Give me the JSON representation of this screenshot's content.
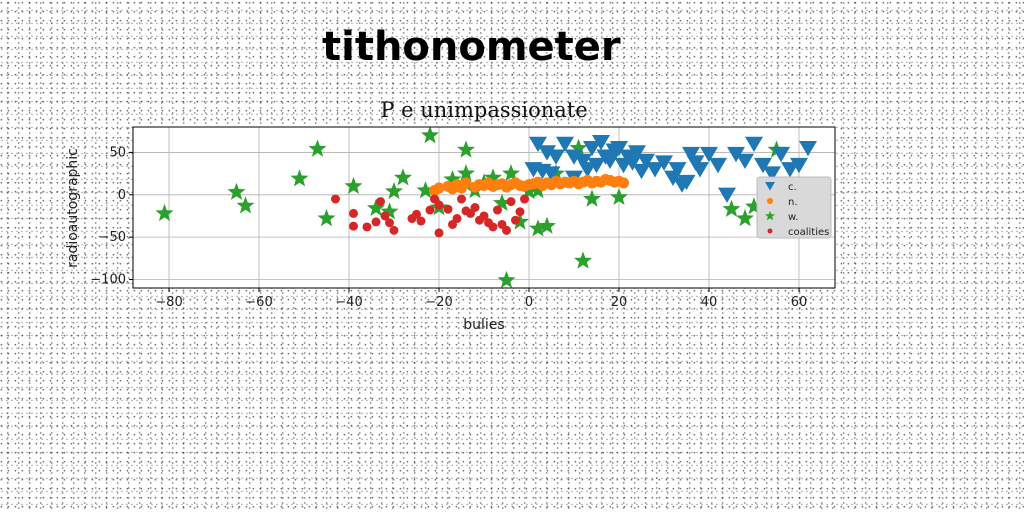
{
  "header": {
    "title": "tithonometer"
  },
  "chart_data": {
    "type": "scatter",
    "title": "P e unimpassionate",
    "xlabel": "bulies",
    "ylabel": "radioautographic",
    "xlim": [
      -88,
      68
    ],
    "ylim": [
      -110,
      80
    ],
    "xticks": [
      -80,
      -60,
      -40,
      -20,
      0,
      20,
      40,
      60
    ],
    "yticks": [
      -100,
      -50,
      0,
      50
    ],
    "grid": true,
    "legend_position": "right",
    "series": [
      {
        "name": "c.",
        "marker": "triangle-down",
        "color": "#1f77b4",
        "points": [
          [
            2,
            60
          ],
          [
            4,
            50
          ],
          [
            6,
            45
          ],
          [
            8,
            60
          ],
          [
            10,
            45
          ],
          [
            12,
            40
          ],
          [
            14,
            55
          ],
          [
            16,
            62
          ],
          [
            17,
            45
          ],
          [
            18,
            40
          ],
          [
            19,
            52
          ],
          [
            20,
            55
          ],
          [
            21,
            35
          ],
          [
            22,
            45
          ],
          [
            23,
            38
          ],
          [
            24,
            50
          ],
          [
            26,
            40
          ],
          [
            28,
            30
          ],
          [
            30,
            38
          ],
          [
            32,
            20
          ],
          [
            34,
            12
          ],
          [
            35,
            15
          ],
          [
            36,
            48
          ],
          [
            37,
            38
          ],
          [
            38,
            30
          ],
          [
            40,
            48
          ],
          [
            42,
            35
          ],
          [
            44,
            0
          ],
          [
            46,
            48
          ],
          [
            48,
            40
          ],
          [
            50,
            60
          ],
          [
            52,
            35
          ],
          [
            54,
            25
          ],
          [
            56,
            48
          ],
          [
            58,
            30
          ],
          [
            60,
            35
          ],
          [
            62,
            55
          ],
          [
            1,
            30
          ],
          [
            3,
            28
          ],
          [
            5,
            25
          ],
          [
            10,
            20
          ],
          [
            13,
            30
          ],
          [
            15,
            35
          ],
          [
            25,
            28
          ],
          [
            33,
            30
          ]
        ]
      },
      {
        "name": "n.",
        "marker": "circle",
        "color": "#ff7f0e",
        "points": [
          [
            -21,
            5
          ],
          [
            -20,
            8
          ],
          [
            -18,
            10
          ],
          [
            -16,
            12
          ],
          [
            -15,
            8
          ],
          [
            -14,
            14
          ],
          [
            -12,
            9
          ],
          [
            -10,
            11
          ],
          [
            -9,
            14
          ],
          [
            -8,
            10
          ],
          [
            -7,
            12
          ],
          [
            -6,
            13
          ],
          [
            -5,
            9
          ],
          [
            -4,
            12
          ],
          [
            -3,
            14
          ],
          [
            -2,
            11
          ],
          [
            -1,
            10
          ],
          [
            0,
            12
          ],
          [
            1,
            13
          ],
          [
            2,
            15
          ],
          [
            3,
            11
          ],
          [
            4,
            14
          ],
          [
            5,
            12
          ],
          [
            6,
            16
          ],
          [
            7,
            13
          ],
          [
            8,
            15
          ],
          [
            9,
            14
          ],
          [
            10,
            16
          ],
          [
            11,
            13
          ],
          [
            12,
            15
          ],
          [
            13,
            17
          ],
          [
            14,
            14
          ],
          [
            15,
            16
          ],
          [
            16,
            15
          ],
          [
            17,
            18
          ],
          [
            18,
            17
          ],
          [
            19,
            15
          ],
          [
            20,
            16
          ],
          [
            21,
            14
          ],
          [
            -17,
            7
          ],
          [
            -11,
            12
          ]
        ]
      },
      {
        "name": "w.",
        "marker": "star",
        "color": "#2ca02c",
        "points": [
          [
            -81,
            -22
          ],
          [
            -65,
            3
          ],
          [
            -63,
            -13
          ],
          [
            -51,
            19
          ],
          [
            -47,
            54
          ],
          [
            -45,
            -28
          ],
          [
            -39,
            10
          ],
          [
            -34,
            -16
          ],
          [
            -31,
            -20
          ],
          [
            -30,
            4
          ],
          [
            -28,
            20
          ],
          [
            -23,
            5
          ],
          [
            -22,
            70
          ],
          [
            -20,
            -15
          ],
          [
            -17,
            18
          ],
          [
            -14,
            25
          ],
          [
            -14,
            53
          ],
          [
            -12,
            5
          ],
          [
            -10,
            14
          ],
          [
            -8,
            20
          ],
          [
            -6,
            -10
          ],
          [
            -5,
            -101
          ],
          [
            -4,
            25
          ],
          [
            -2,
            -32
          ],
          [
            0,
            4
          ],
          [
            2,
            5
          ],
          [
            2,
            -40
          ],
          [
            4,
            -37
          ],
          [
            6,
            25
          ],
          [
            11,
            55
          ],
          [
            12,
            -78
          ],
          [
            14,
            -5
          ],
          [
            20,
            -3
          ],
          [
            45,
            -17
          ],
          [
            48,
            -28
          ],
          [
            50,
            -14
          ],
          [
            55,
            53
          ]
        ]
      },
      {
        "name": "coalities",
        "marker": "circle-small",
        "color": "#d62728",
        "points": [
          [
            -43,
            -5
          ],
          [
            -39,
            -22
          ],
          [
            -39,
            -37
          ],
          [
            -36,
            -38
          ],
          [
            -34,
            -32
          ],
          [
            -33,
            -8
          ],
          [
            -32,
            -25
          ],
          [
            -31,
            -33
          ],
          [
            -30,
            -42
          ],
          [
            -26,
            -28
          ],
          [
            -25,
            -23
          ],
          [
            -24,
            -31
          ],
          [
            -22,
            -18
          ],
          [
            -21,
            -5
          ],
          [
            -20,
            -12
          ],
          [
            -20,
            -45
          ],
          [
            -18,
            -17
          ],
          [
            -17,
            -35
          ],
          [
            -16,
            -28
          ],
          [
            -15,
            -5
          ],
          [
            -14,
            -19
          ],
          [
            -13,
            -22
          ],
          [
            -12,
            -15
          ],
          [
            -11,
            -30
          ],
          [
            -10,
            -25
          ],
          [
            -9,
            -33
          ],
          [
            -8,
            -38
          ],
          [
            -7,
            -18
          ],
          [
            -6,
            -35
          ],
          [
            -5,
            -42
          ],
          [
            -4,
            -8
          ],
          [
            -3,
            -30
          ],
          [
            -2,
            -20
          ],
          [
            -1,
            -5
          ]
        ]
      }
    ]
  }
}
